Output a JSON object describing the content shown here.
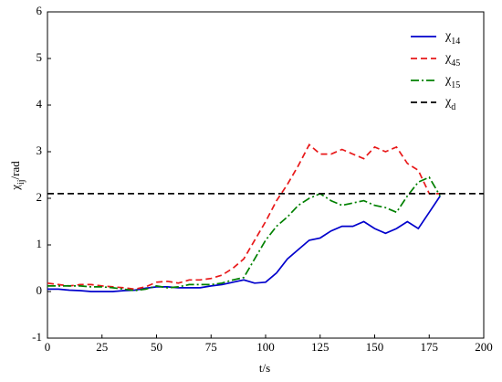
{
  "chart_data": {
    "type": "line",
    "x_label": "t/s",
    "y_label": "χij/rad",
    "x": [
      0,
      5,
      10,
      15,
      20,
      25,
      30,
      35,
      40,
      45,
      50,
      55,
      60,
      65,
      70,
      75,
      80,
      85,
      90,
      95,
      100,
      105,
      110,
      115,
      120,
      125,
      130,
      135,
      140,
      145,
      150,
      155,
      160,
      165,
      170,
      175,
      180
    ],
    "xlim": [
      0,
      200
    ],
    "xticks": [
      0,
      25,
      50,
      75,
      100,
      125,
      150,
      175,
      200
    ],
    "ylim": [
      -1,
      6
    ],
    "yticks": [
      -1,
      0,
      1,
      2,
      3,
      4,
      5,
      6
    ],
    "legend": "upper-right",
    "series": [
      {
        "name": "χ14",
        "color": "#0000cc",
        "dash": "solid",
        "values": [
          0.05,
          0.05,
          0.03,
          0.02,
          0.0,
          0.0,
          0.0,
          0.02,
          0.03,
          0.07,
          0.1,
          0.1,
          0.08,
          0.08,
          0.08,
          0.12,
          0.15,
          0.2,
          0.25,
          0.18,
          0.2,
          0.4,
          0.7,
          0.9,
          1.1,
          1.15,
          1.3,
          1.4,
          1.4,
          1.5,
          1.35,
          1.25,
          1.35,
          1.5,
          1.35,
          1.7,
          2.05
        ]
      },
      {
        "name": "χ45",
        "color": "#e8191a",
        "dash": "dashed",
        "values": [
          0.18,
          0.15,
          0.12,
          0.15,
          0.15,
          0.12,
          0.1,
          0.08,
          0.05,
          0.1,
          0.2,
          0.22,
          0.18,
          0.25,
          0.25,
          0.28,
          0.35,
          0.5,
          0.7,
          1.1,
          1.5,
          1.95,
          2.3,
          2.7,
          3.15,
          2.95,
          2.95,
          3.05,
          2.95,
          2.85,
          3.1,
          3.0,
          3.1,
          2.75,
          2.6,
          2.1,
          2.1
        ]
      },
      {
        "name": "χ15",
        "color": "#008000",
        "dash": "dashdot",
        "values": [
          0.12,
          0.12,
          0.12,
          0.12,
          0.1,
          0.1,
          0.08,
          0.05,
          0.02,
          0.05,
          0.12,
          0.08,
          0.1,
          0.15,
          0.15,
          0.15,
          0.18,
          0.25,
          0.3,
          0.7,
          1.1,
          1.4,
          1.6,
          1.85,
          2.0,
          2.1,
          1.95,
          1.85,
          1.9,
          1.95,
          1.85,
          1.8,
          1.7,
          2.05,
          2.35,
          2.45,
          2.05
        ]
      },
      {
        "name": "χd",
        "color": "#000000",
        "dash": "dashed",
        "x": [
          0,
          200
        ],
        "values": [
          2.1,
          2.1
        ]
      }
    ]
  }
}
